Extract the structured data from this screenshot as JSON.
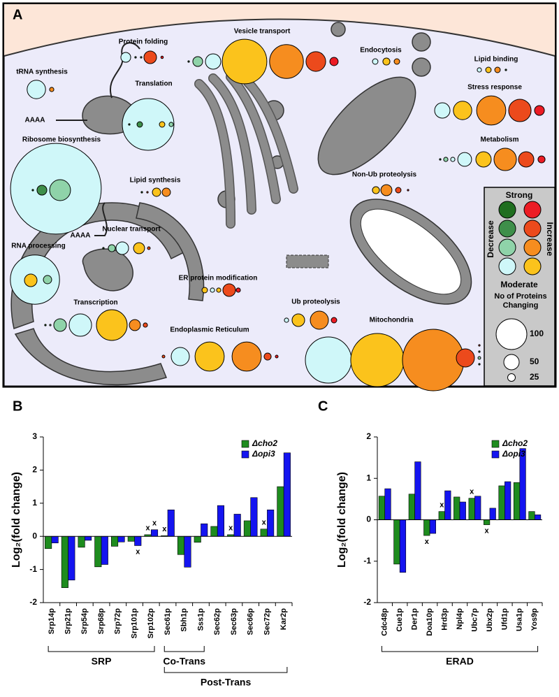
{
  "diagram": {
    "panel": "A",
    "poly_a": [
      "AAAA",
      "AAAA"
    ],
    "compartments": [
      {
        "label": "tRNA synthesis",
        "bubbles": [
          {
            "color": "#cff7f9",
            "count": 60
          },
          {
            "color": "#f68d1f",
            "count": 14
          }
        ]
      },
      {
        "label": "Protein folding",
        "bubbles": [
          {
            "color": "#cff7f9",
            "count": 32
          },
          {
            "color": "#1f6e1f",
            "count": 5
          },
          {
            "color": "#3e8f4a",
            "count": 5
          },
          {
            "color": "#ec4a1c",
            "count": 41
          },
          {
            "color": "#ec1c24",
            "count": 8
          }
        ]
      },
      {
        "label": "Vesicle transport",
        "bubbles": [
          {
            "color": "#1f6e1f",
            "count": 5
          },
          {
            "color": "#8fd3a9",
            "count": 32
          },
          {
            "color": "#cff7f9",
            "count": 50
          },
          {
            "color": "#fbc31c",
            "count": 145
          },
          {
            "color": "#f68d1f",
            "count": 110
          },
          {
            "color": "#ec4a1c",
            "count": 64
          },
          {
            "color": "#ec1c24",
            "count": 27
          }
        ]
      },
      {
        "label": "Endocytosis",
        "bubbles": [
          {
            "color": "#cff7f9",
            "count": 18
          },
          {
            "color": "#fbc31c",
            "count": 23
          },
          {
            "color": "#f68d1f",
            "count": 18
          }
        ]
      },
      {
        "label": "Lipid binding",
        "bubbles": [
          {
            "color": "#cff7f9",
            "count": 14
          },
          {
            "color": "#fbc31c",
            "count": 18
          },
          {
            "color": "#f68d1f",
            "count": 18
          },
          {
            "color": "#1f6e1f",
            "count": 5
          }
        ]
      },
      {
        "label": "Translation",
        "bubbles": [
          {
            "color": "#cff7f9",
            "count": 168
          },
          {
            "color": "#1f6e1f",
            "count": 5
          },
          {
            "color": "#3e8f4a",
            "count": 18
          },
          {
            "color": "#fbc31c",
            "count": 18
          },
          {
            "color": "#8fd3a9",
            "count": 14
          }
        ]
      },
      {
        "label": "Stress response",
        "bubbles": [
          {
            "color": "#cff7f9",
            "count": 50
          },
          {
            "color": "#fbc31c",
            "count": 60
          },
          {
            "color": "#f68d1f",
            "count": 95
          },
          {
            "color": "#ec4a1c",
            "count": 73
          },
          {
            "color": "#ec1c24",
            "count": 32
          }
        ]
      },
      {
        "label": "Ribosome biosynthesis",
        "bubbles": [
          {
            "color": "#cff7f9",
            "count": 295
          },
          {
            "color": "#1f6e1f",
            "count": 5
          },
          {
            "color": "#3e8f4a",
            "count": 32
          },
          {
            "color": "#8fd3a9",
            "count": 68
          }
        ]
      },
      {
        "label": "Metabolism",
        "bubbles": [
          {
            "color": "#1f6e1f",
            "count": 5
          },
          {
            "color": "#8fd3a9",
            "count": 14
          },
          {
            "color": "#cff7f9",
            "count": 14
          },
          {
            "color": "#cff7f9",
            "count": 45
          },
          {
            "color": "#fbc31c",
            "count": 50
          },
          {
            "color": "#f68d1f",
            "count": 73
          },
          {
            "color": "#ec4a1c",
            "count": 50
          },
          {
            "color": "#ec1c24",
            "count": 23
          }
        ]
      },
      {
        "label": "Lipid synthesis",
        "bubbles": [
          {
            "color": "#1f6e1f",
            "count": 5
          },
          {
            "color": "#ec4a1c",
            "count": 5
          },
          {
            "color": "#fbc31c",
            "count": 27
          },
          {
            "color": "#f68d1f",
            "count": 27
          }
        ]
      },
      {
        "label": "Non-Ub proteolysis",
        "bubbles": [
          {
            "color": "#fbc31c",
            "count": 23
          },
          {
            "color": "#f68d1f",
            "count": 36
          },
          {
            "color": "#ec4a1c",
            "count": 18
          },
          {
            "color": "#ec1c24",
            "count": 5
          }
        ]
      },
      {
        "label": "Nuclear transport",
        "bubbles": [
          {
            "color": "#1f6e1f",
            "count": 5
          },
          {
            "color": "#8fd3a9",
            "count": 23
          },
          {
            "color": "#cff7f9",
            "count": 41
          },
          {
            "color": "#fbc31c",
            "count": 36
          },
          {
            "color": "#ec4a1c",
            "count": 9
          }
        ]
      },
      {
        "label": "RNA processing",
        "bubbles": [
          {
            "color": "#cff7f9",
            "count": 160
          },
          {
            "color": "#fbc31c",
            "count": 41
          },
          {
            "color": "#8fd3a9",
            "count": 27
          }
        ]
      },
      {
        "label": "ER protein modification",
        "bubbles": [
          {
            "color": "#fbc31c",
            "count": 18
          },
          {
            "color": "#cff7f9",
            "count": 14
          },
          {
            "color": "#fbc31c",
            "count": 14
          },
          {
            "color": "#ec4a1c",
            "count": 41
          },
          {
            "color": "#ec1c24",
            "count": 14
          }
        ]
      },
      {
        "label": "Ub proteolysis",
        "bubbles": [
          {
            "color": "#cff7f9",
            "count": 14
          },
          {
            "color": "#fbc31c",
            "count": 41
          },
          {
            "color": "#f68d1f",
            "count": 59
          },
          {
            "color": "#ec1c24",
            "count": 18
          }
        ]
      },
      {
        "label": "Transcription",
        "bubbles": [
          {
            "color": "#1f6e1f",
            "count": 5
          },
          {
            "color": "#8fd3a9",
            "count": 5
          },
          {
            "color": "#8fd3a9",
            "count": 41
          },
          {
            "color": "#cff7f9",
            "count": 73
          },
          {
            "color": "#fbc31c",
            "count": 100
          },
          {
            "color": "#f68d1f",
            "count": 36
          },
          {
            "color": "#ec4a1c",
            "count": 14
          }
        ]
      },
      {
        "label": "Endoplasmic Reticulum",
        "bubbles": [
          {
            "color": "#ec4a1c",
            "count": 9
          },
          {
            "color": "#cff7f9",
            "count": 59
          },
          {
            "color": "#fbc31c",
            "count": 95
          },
          {
            "color": "#f68d1f",
            "count": 95
          },
          {
            "color": "#ec4a1c",
            "count": 23
          },
          {
            "color": "#ec1c24",
            "count": 9
          }
        ]
      },
      {
        "label": "Mitochondria",
        "bubbles": [
          {
            "color": "#cff7f9",
            "count": 150
          },
          {
            "color": "#fbc31c",
            "count": 173
          },
          {
            "color": "#f68d1f",
            "count": 200
          },
          {
            "color": "#ec4a1c",
            "count": 59
          },
          {
            "color": "#ec4a1c",
            "count": 5
          },
          {
            "color": "#3e8f4a",
            "count": 5
          },
          {
            "color": "#8fd3a9",
            "count": 9
          },
          {
            "color": "#1f6e1f",
            "count": 5
          }
        ]
      }
    ],
    "legend": {
      "strong": "Strong",
      "decrease": "Decrease",
      "increase": "Increase",
      "moderate": "Moderate",
      "decrease_colors": [
        "#1f6e1f",
        "#3e8f4a",
        "#8fd3a9",
        "#cff7f9"
      ],
      "increase_colors": [
        "#ec1c24",
        "#ec4a1c",
        "#f68d1f",
        "#fbc31c"
      ],
      "size_title": "No of Proteins Changing",
      "sizes": [
        100,
        50,
        25
      ]
    }
  },
  "chart_data": [
    {
      "type": "bar",
      "panel": "B",
      "y_label": "Log₂(fold change)",
      "categories": [
        "Srp14p",
        "Srp21p",
        "Srp54p",
        "Srp68p",
        "Srp72p",
        "Srp101p",
        "Srp102p",
        "Sec61p",
        "Sbh1p",
        "Sss1p",
        "Sec62p",
        "Sec63p",
        "Sec66p",
        "Sec72p",
        "Kar2p"
      ],
      "series": [
        {
          "name": "Δcho2",
          "color": "#1e8c1e",
          "values": [
            -0.37,
            -1.55,
            -0.33,
            -0.92,
            -0.3,
            -0.15,
            0.05,
            0.02,
            -0.55,
            -0.18,
            0.3,
            0.05,
            0.47,
            0.22,
            1.5
          ]
        },
        {
          "name": "Δopi3",
          "color": "#1414f0",
          "values": [
            -0.2,
            -1.32,
            -0.12,
            -0.85,
            -0.17,
            -0.28,
            0.2,
            0.8,
            -0.93,
            0.38,
            0.93,
            0.67,
            1.17,
            0.8,
            2.52
          ]
        }
      ],
      "ylim": [
        -2,
        3
      ],
      "yticks": [
        -2,
        -1,
        0,
        1,
        2,
        3
      ],
      "annotations": [
        {
          "text": "x",
          "category": "Srp101p",
          "series": "Δopi3"
        },
        {
          "text": "x",
          "category": "Srp102p",
          "series": "Δcho2"
        },
        {
          "text": "x",
          "category": "Srp102p",
          "series": "Δopi3"
        },
        {
          "text": "x",
          "category": "Sec61p",
          "series": "Δcho2"
        },
        {
          "text": "x",
          "category": "Sec63p",
          "series": "Δcho2"
        },
        {
          "text": "x",
          "category": "Sec72p",
          "series": "Δcho2"
        }
      ],
      "groups": [
        {
          "label": "SRP",
          "from": "Srp14p",
          "to": "Srp102p"
        },
        {
          "label": "Co-Trans",
          "from": "Sec61p",
          "to": "Sss1p"
        },
        {
          "label": "Post-Trans",
          "from": "Sec61p",
          "to": "Kar2p"
        }
      ]
    },
    {
      "type": "bar",
      "panel": "C",
      "y_label": "Log₂(fold change)",
      "categories": [
        "Cdc48p",
        "Cue1p",
        "Der1p",
        "Doa10p",
        "Hrd3p",
        "Npl4p",
        "Ubc7p",
        "Ubx2p",
        "Ufd1p",
        "Usa1p",
        "Yos9p"
      ],
      "series": [
        {
          "name": "Δcho2",
          "color": "#1e8c1e",
          "values": [
            0.57,
            -1.07,
            0.62,
            -0.38,
            0.2,
            0.55,
            0.52,
            -0.12,
            0.82,
            0.9,
            0.2
          ]
        },
        {
          "name": "Δopi3",
          "color": "#1414f0",
          "values": [
            0.75,
            -1.27,
            1.4,
            -0.33,
            0.7,
            0.43,
            0.57,
            0.28,
            0.92,
            1.72,
            0.12
          ]
        }
      ],
      "ylim": [
        -2,
        2
      ],
      "yticks": [
        -2,
        -1,
        0,
        1,
        2
      ],
      "annotations": [
        {
          "text": "x",
          "category": "Doa10p",
          "series": "Δcho2"
        },
        {
          "text": "x",
          "category": "Hrd3p",
          "series": "Δcho2"
        },
        {
          "text": "x",
          "category": "Ubc7p",
          "series": "Δcho2"
        },
        {
          "text": "x",
          "category": "Ubx2p",
          "series": "Δcho2"
        }
      ],
      "groups": [
        {
          "label": "ERAD",
          "from": "Cdc48p",
          "to": "Yos9p"
        }
      ]
    }
  ]
}
